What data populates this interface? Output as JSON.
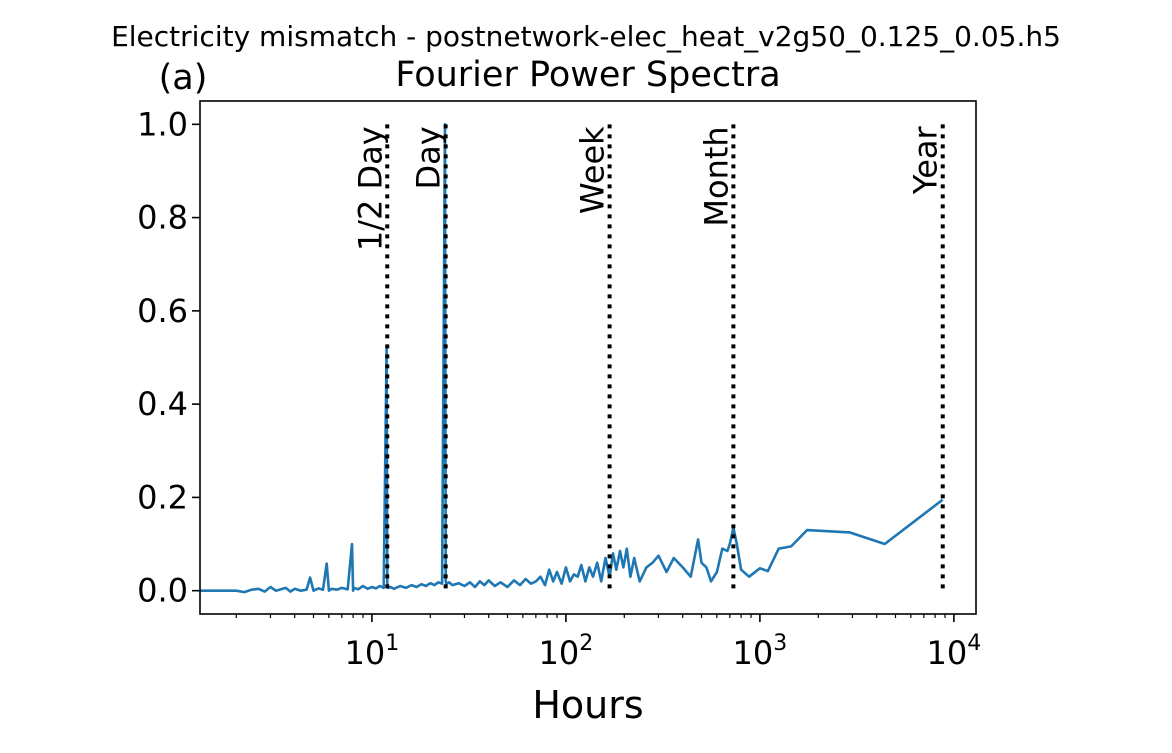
{
  "suptitle": "Electricity mismatch - postnetwork-elec_heat_v2g50_0.125_0.05.h5",
  "panel_label": "(a)",
  "colors": {
    "line": "#1f77b4",
    "ref": "#000000",
    "axes": "#000000"
  },
  "chart_data": {
    "type": "line",
    "title": "Fourier Power Spectra",
    "xlabel": "Hours",
    "ylabel": "",
    "xscale": "log",
    "xlim": [
      1.3,
      13000
    ],
    "ylim": [
      -0.05,
      1.05
    ],
    "grid": false,
    "yticks": [
      0.0,
      0.2,
      0.4,
      0.6,
      0.8,
      1.0
    ],
    "ytick_labels": [
      "0.0",
      "0.2",
      "0.4",
      "0.6",
      "0.8",
      "1.0"
    ],
    "xticks": [
      10,
      100,
      1000,
      10000
    ],
    "xtick_labels": [
      {
        "base": "10",
        "exp": "1"
      },
      {
        "base": "10",
        "exp": "2"
      },
      {
        "base": "10",
        "exp": "3"
      },
      {
        "base": "10",
        "exp": "4"
      }
    ],
    "reference_lines": [
      {
        "label": "1/2 Day",
        "x": 12
      },
      {
        "label": "Day",
        "x": 24
      },
      {
        "label": "Week",
        "x": 168
      },
      {
        "label": "Month",
        "x": 730
      },
      {
        "label": "Year",
        "x": 8760
      }
    ],
    "series": [
      {
        "x": [
          1.3,
          2.0,
          2.2,
          2.4,
          2.6,
          2.8,
          3.0,
          3.2,
          3.4,
          3.6,
          3.8,
          4.0,
          4.3,
          4.6,
          4.8,
          5.0,
          5.3,
          5.6,
          5.85,
          6.0,
          6.2,
          6.6,
          7.0,
          7.5,
          7.9,
          8.0,
          8.1,
          8.5,
          9.0,
          9.5,
          10.0,
          10.5,
          11.0,
          11.5,
          11.9,
          12.0,
          12.1,
          12.5,
          13.0,
          14.0,
          15.0,
          16.0,
          17.0,
          18.0,
          19.0,
          20.0,
          21.0,
          22.0,
          23.0,
          23.8,
          24.0,
          24.2,
          25.0,
          26.0,
          28.0,
          30.0,
          32.0,
          34.0,
          36.0,
          38.0,
          40.0,
          43.0,
          46.0,
          50.0,
          54.0,
          58.0,
          62.0,
          66.0,
          70.0,
          74.0,
          78.0,
          82.0,
          86.0,
          90.0,
          95.0,
          100.0,
          105.0,
          110.0,
          115.0,
          120.0,
          126.0,
          132.0,
          138.0,
          145.0,
          152.0,
          160.0,
          168.0,
          175.0,
          182.0,
          190.0,
          198.0,
          206.0,
          215.0,
          225.0,
          240.0,
          260.0,
          280.0,
          300.0,
          330.0,
          360.0,
          400.0,
          440.0,
          480.0,
          500.0,
          530.0,
          560.0,
          600.0,
          640.0,
          680.0,
          700.0,
          730.0,
          760.0,
          800.0,
          880.0,
          1000.0,
          1100.0,
          1250.0,
          1450.0,
          1750.0,
          2900.0,
          4400.0,
          8760.0
        ],
        "values": [
          0.0,
          0.0,
          -0.003,
          0.002,
          0.004,
          -0.002,
          0.008,
          0.0,
          0.003,
          0.006,
          -0.002,
          0.004,
          0.0,
          0.002,
          0.028,
          0.0,
          0.005,
          0.002,
          0.058,
          0.0,
          0.004,
          0.002,
          0.006,
          0.003,
          0.1,
          0.0,
          0.006,
          0.003,
          0.01,
          0.004,
          0.008,
          0.005,
          0.01,
          0.006,
          0.52,
          0.01,
          0.006,
          0.008,
          0.004,
          0.01,
          0.006,
          0.012,
          0.008,
          0.014,
          0.01,
          0.016,
          0.012,
          0.018,
          0.015,
          1.0,
          0.02,
          0.015,
          0.018,
          0.012,
          0.016,
          0.01,
          0.018,
          0.008,
          0.02,
          0.012,
          0.022,
          0.01,
          0.018,
          0.008,
          0.022,
          0.012,
          0.025,
          0.015,
          0.02,
          0.03,
          0.012,
          0.045,
          0.02,
          0.04,
          0.015,
          0.05,
          0.02,
          0.035,
          0.03,
          0.055,
          0.02,
          0.05,
          0.03,
          0.06,
          0.02,
          0.07,
          0.03,
          0.08,
          0.045,
          0.085,
          0.05,
          0.09,
          0.03,
          0.07,
          0.02,
          0.05,
          0.06,
          0.075,
          0.04,
          0.07,
          0.05,
          0.03,
          0.11,
          0.06,
          0.05,
          0.02,
          0.04,
          0.09,
          0.085,
          0.1,
          0.135,
          0.1,
          0.045,
          0.03,
          0.048,
          0.042,
          0.09,
          0.095,
          0.13,
          0.125,
          0.1,
          0.195
        ]
      }
    ]
  }
}
